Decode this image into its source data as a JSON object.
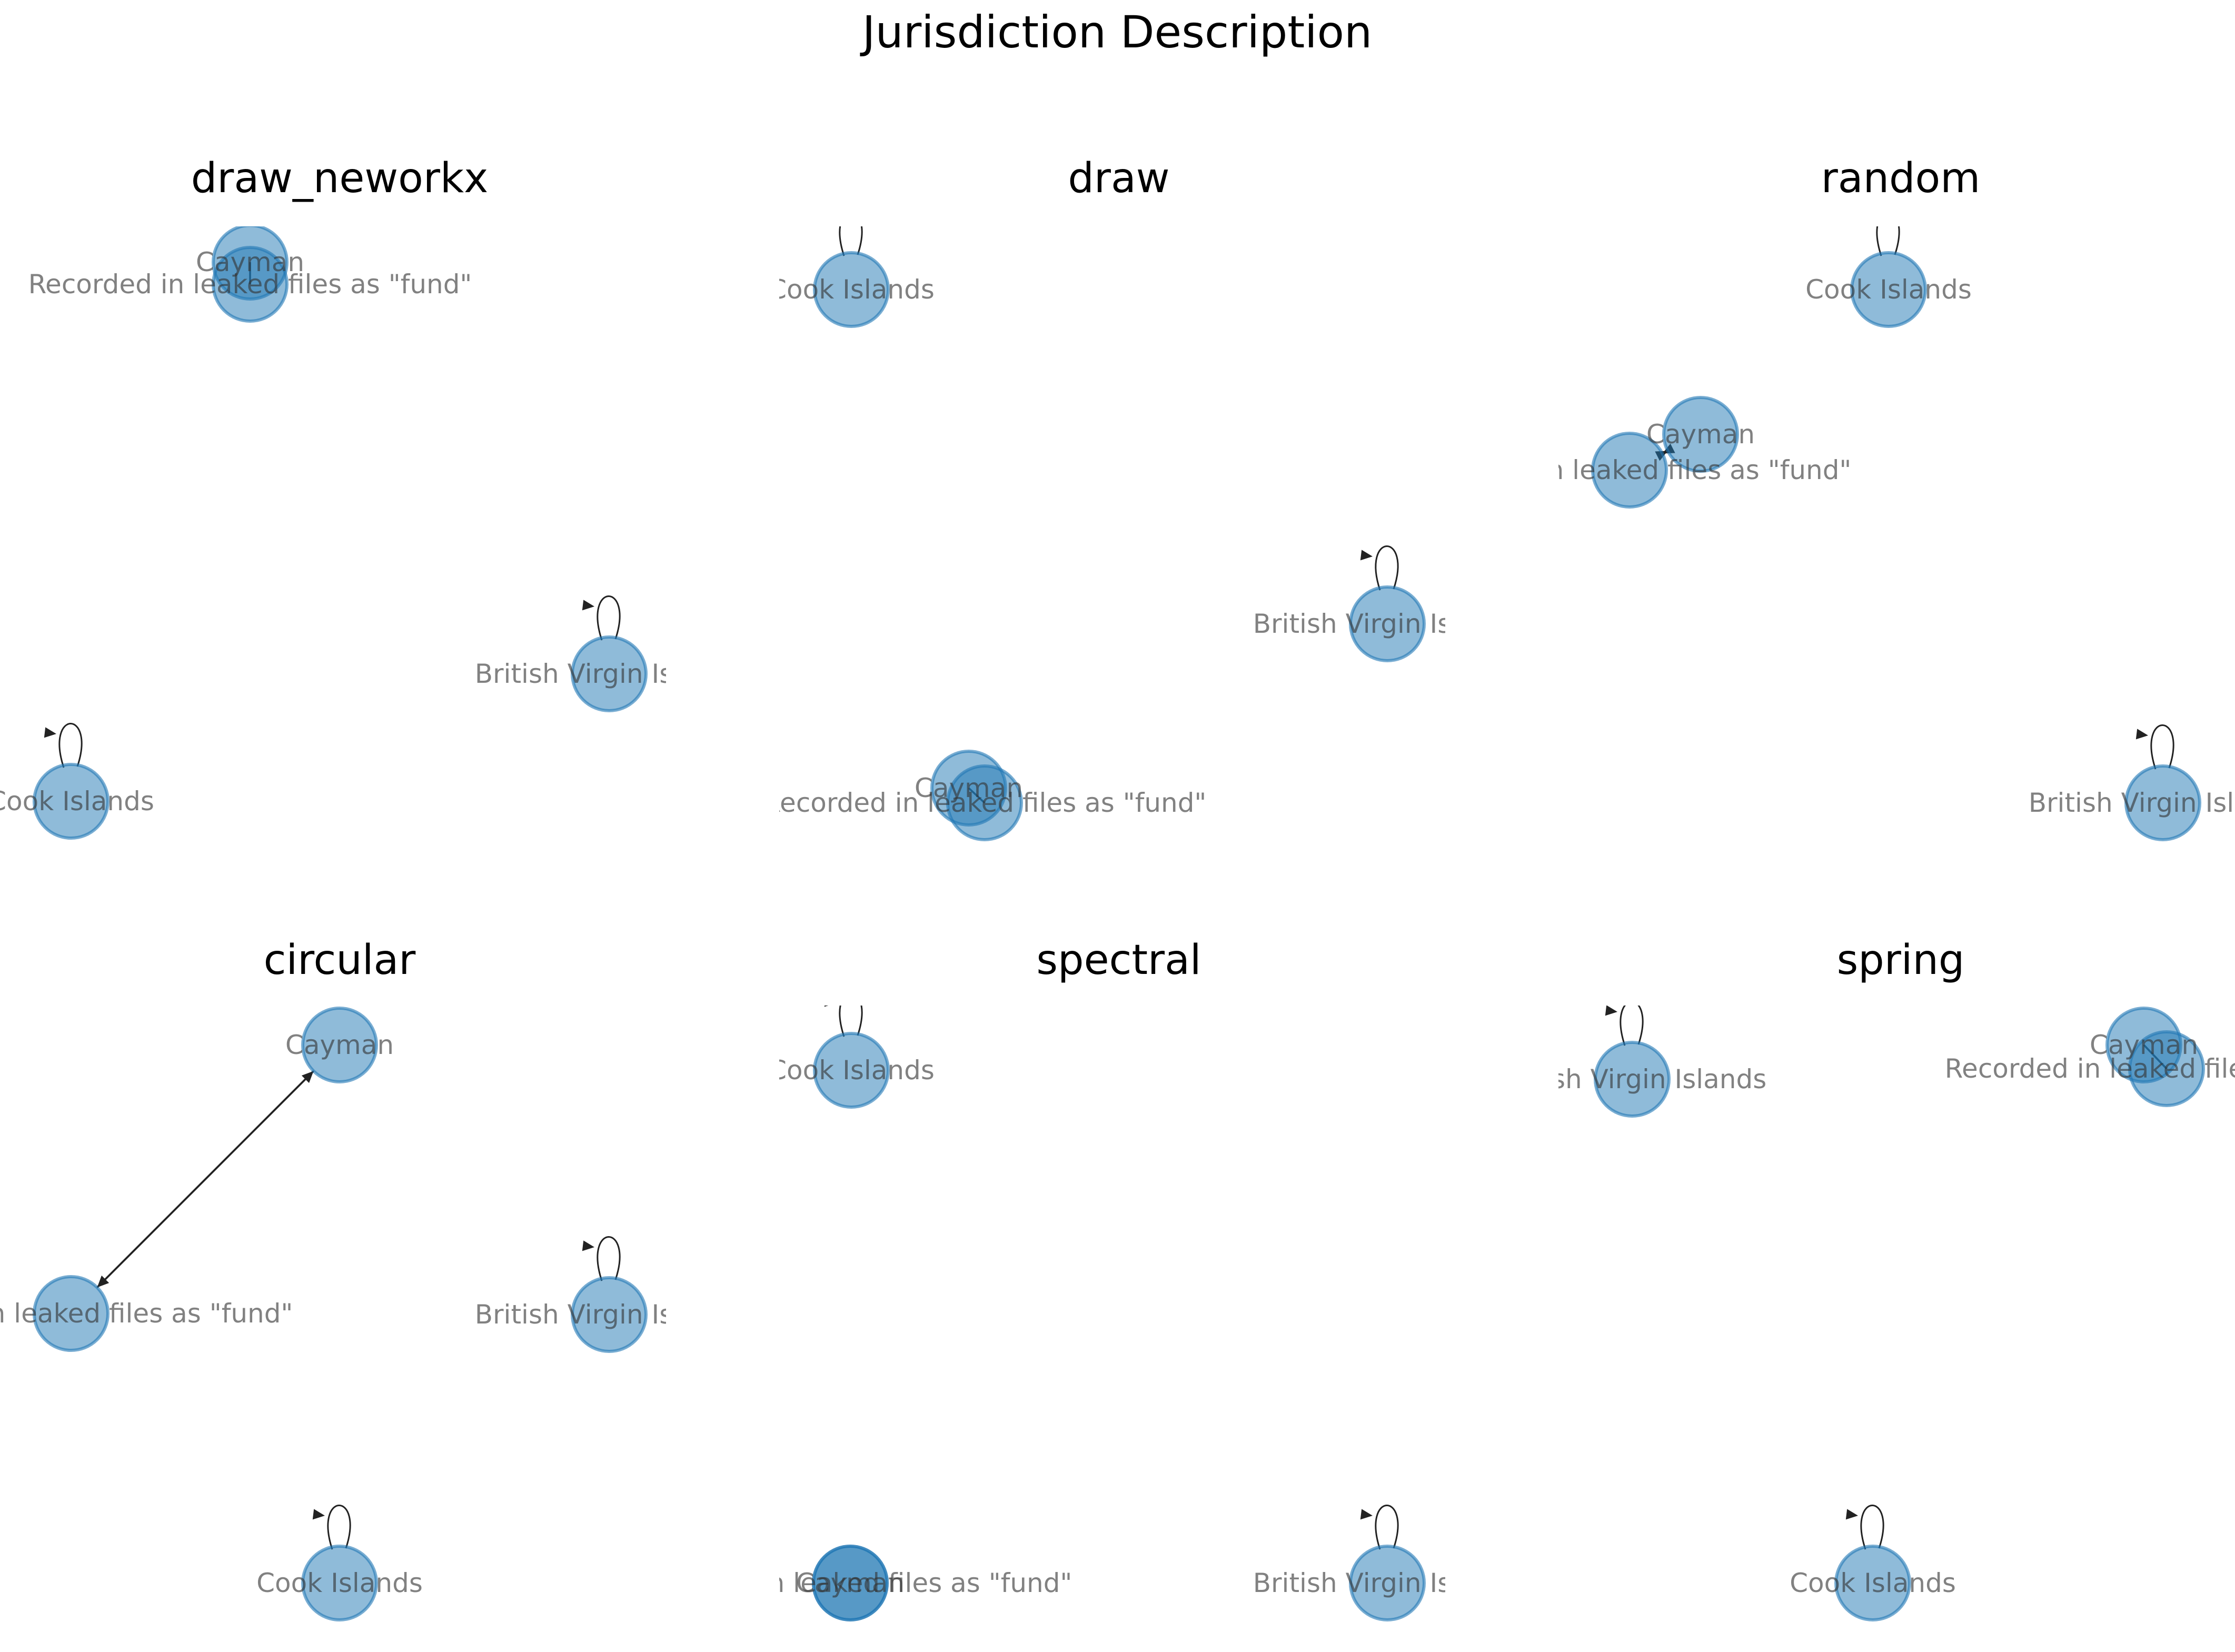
{
  "title": "Jurisdiction Description",
  "labels": {
    "cayman": "Cayman",
    "fund": "Recorded in leaked files as \"fund\"",
    "bvi": "British Virgin Islands",
    "cook": "Cook Islands"
  },
  "panels": [
    {
      "id": "draw_neworkx",
      "title": "draw_neworkx"
    },
    {
      "id": "draw",
      "title": "draw"
    },
    {
      "id": "random",
      "title": "random"
    },
    {
      "id": "circular",
      "title": "circular"
    },
    {
      "id": "spectral",
      "title": "spectral"
    },
    {
      "id": "spring",
      "title": "spring"
    }
  ],
  "graph": {
    "nodes": [
      "cayman",
      "fund",
      "bvi",
      "cook"
    ],
    "edges": [
      {
        "from": "cayman",
        "to": "fund"
      },
      {
        "from": "fund",
        "to": "cayman"
      },
      {
        "from": "bvi",
        "to": "bvi"
      },
      {
        "from": "cook",
        "to": "cook"
      }
    ]
  },
  "colors": {
    "node": "#1f77b4",
    "edge": "#222222"
  }
}
